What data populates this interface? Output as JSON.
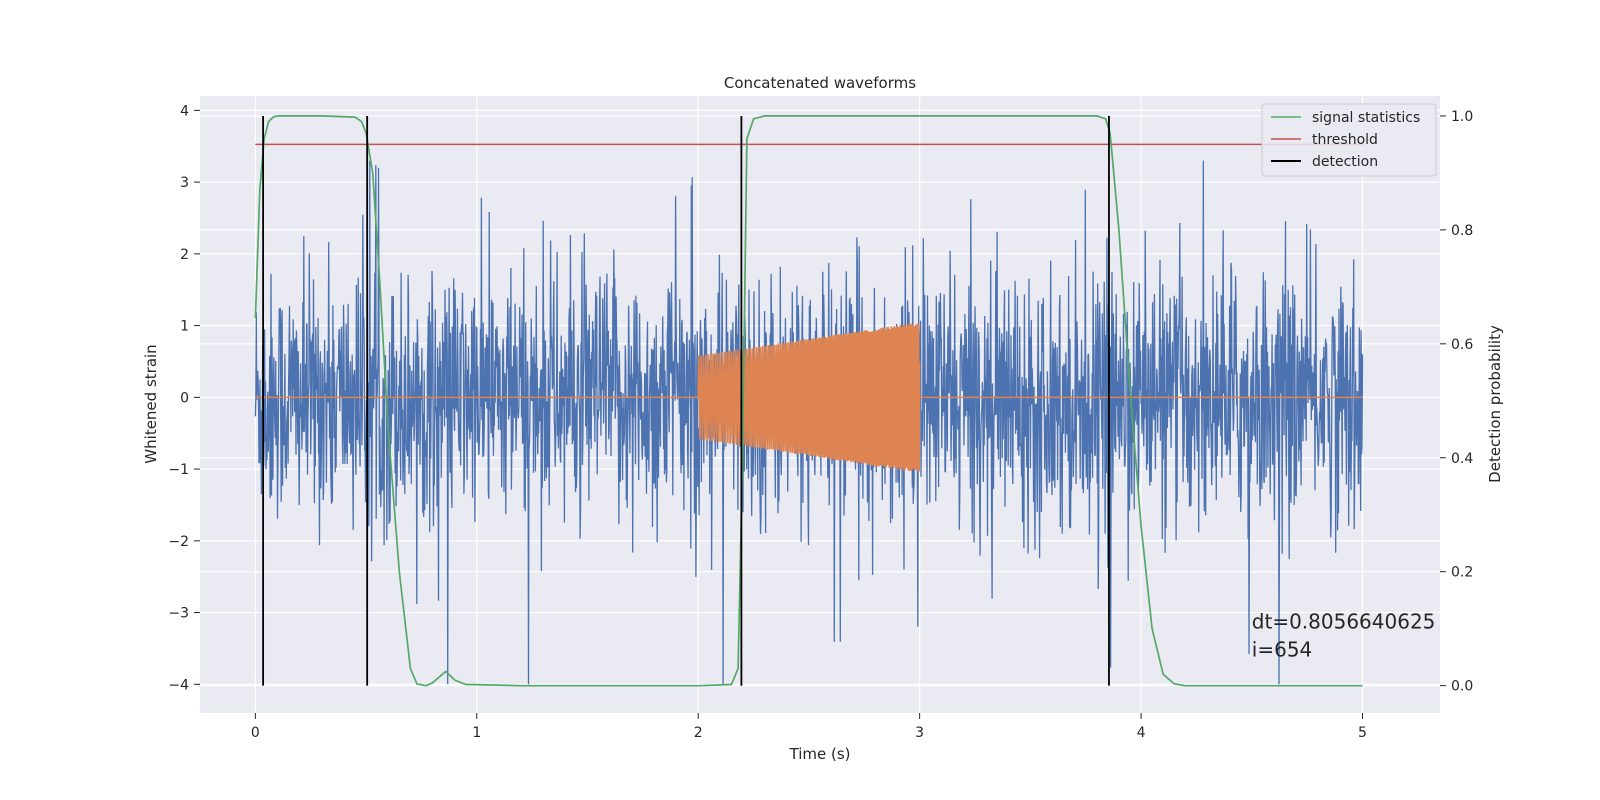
{
  "chart_data": {
    "type": "line",
    "title": "Concatenated waveforms",
    "xlabel": "Time (s)",
    "ylabel_left": "Whitened strain",
    "ylabel_right": "Detection probability",
    "xlim": [
      -0.25,
      5.35
    ],
    "ylim_left": [
      -4.4,
      4.2
    ],
    "ylim_right": [
      -0.048,
      1.035
    ],
    "x_ticks": [
      0,
      1,
      2,
      3,
      4,
      5
    ],
    "y_left_ticks": [
      -4,
      -3,
      -2,
      -1,
      0,
      1,
      2,
      3,
      4
    ],
    "y_right_ticks": [
      0.0,
      0.2,
      0.4,
      0.6,
      0.8,
      1.0
    ],
    "grid": true,
    "background": "#eaeaf2",
    "legend_position": "top-right",
    "legend": [
      {
        "label": "signal statistics",
        "color": "#55a868"
      },
      {
        "label": "threshold",
        "color": "#c44e52"
      },
      {
        "label": "detection",
        "color": "#000000"
      }
    ],
    "series": [
      {
        "id": "strain",
        "axis": "left",
        "color": "#4c72b0",
        "kind": "noise",
        "x_range": [
          0,
          5
        ],
        "typical_envelope": [
          -2.6,
          2.6
        ],
        "max": 3.3,
        "min": -4.0
      },
      {
        "id": "waveform",
        "axis": "left",
        "color": "#dd8452",
        "kind": "chirp",
        "flat_value": 0,
        "chirp_x_range": [
          2.0,
          3.0
        ],
        "amplitude_start": 0.58,
        "amplitude_end": 1.05,
        "x_range": [
          0,
          5
        ]
      },
      {
        "id": "signal statistics",
        "axis": "right",
        "color": "#55a868",
        "x": [
          0.0,
          0.02,
          0.04,
          0.06,
          0.08,
          0.1,
          0.15,
          0.3,
          0.45,
          0.48,
          0.5,
          0.53,
          0.56,
          0.6,
          0.65,
          0.7,
          0.73,
          0.77,
          0.8,
          0.83,
          0.86,
          0.9,
          0.95,
          1.1,
          1.2,
          1.5,
          2.0,
          2.15,
          2.18,
          2.2,
          2.22,
          2.25,
          2.3,
          2.5,
          3.0,
          3.8,
          3.84,
          3.86,
          3.9,
          3.95,
          4.0,
          4.05,
          4.1,
          4.15,
          4.2,
          4.5,
          5.0
        ],
        "y": [
          0.645,
          0.87,
          0.96,
          0.99,
          0.998,
          1.0,
          1.0,
          1.0,
          0.998,
          0.99,
          0.97,
          0.9,
          0.72,
          0.45,
          0.2,
          0.03,
          0.003,
          0.0,
          0.005,
          0.015,
          0.025,
          0.01,
          0.002,
          0.001,
          0.0,
          0.0,
          0.0,
          0.002,
          0.03,
          0.4,
          0.96,
          0.995,
          1.0,
          1.0,
          1.0,
          1.0,
          0.995,
          0.97,
          0.8,
          0.52,
          0.28,
          0.1,
          0.02,
          0.003,
          0.0,
          0.0,
          0.0
        ]
      },
      {
        "id": "threshold",
        "axis": "right",
        "color": "#c44e52",
        "x": [
          0,
          5
        ],
        "y": [
          0.95,
          0.95
        ]
      }
    ],
    "detections": [
      0.035,
      0.505,
      2.195,
      3.855
    ],
    "detection_range": [
      0.0,
      1.0
    ],
    "annotation": {
      "x": 4.5,
      "y_left": -3.22,
      "lines": [
        "dt=0.8056640625",
        " i=654"
      ]
    }
  }
}
